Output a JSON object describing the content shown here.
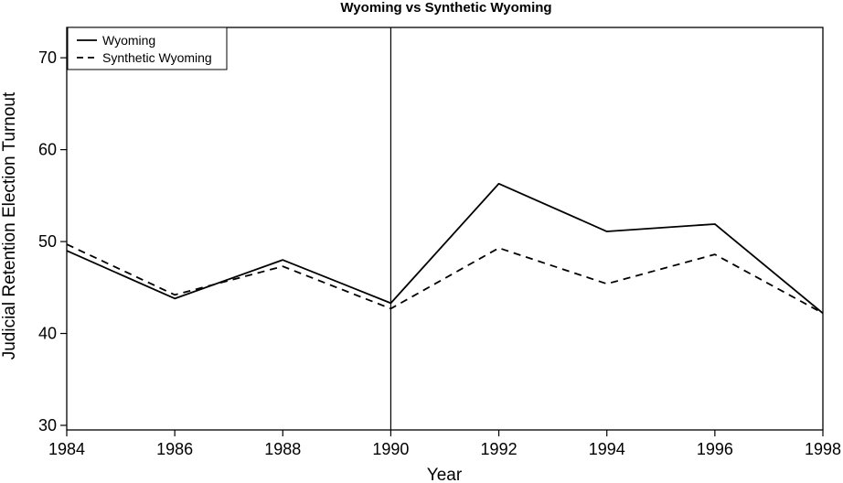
{
  "chart_data": {
    "type": "line",
    "title": "Wyoming vs Synthetic Wyoming",
    "xlabel": "Year",
    "ylabel": "Judicial Retention Election Turnout",
    "x": [
      1984,
      1986,
      1988,
      1990,
      1992,
      1994,
      1996,
      1998
    ],
    "xlim": [
      1984,
      1998
    ],
    "ylim": [
      29.5,
      73.3
    ],
    "xticks": [
      1984,
      1986,
      1988,
      1990,
      1992,
      1994,
      1996,
      1998
    ],
    "yticks": [
      30,
      40,
      50,
      60,
      70
    ],
    "vline": 1990,
    "grid": false,
    "legend_position": "top-left",
    "series": [
      {
        "name": "Wyoming",
        "style": "solid",
        "values": [
          49.0,
          43.8,
          48.0,
          43.3,
          56.3,
          51.1,
          51.9,
          42.2
        ]
      },
      {
        "name": "Synthetic Wyoming",
        "style": "dashed",
        "values": [
          49.7,
          44.2,
          47.3,
          42.7,
          49.3,
          45.4,
          48.6,
          42.2
        ]
      }
    ],
    "colors": {
      "line": "#000000",
      "background": "#ffffff"
    }
  }
}
